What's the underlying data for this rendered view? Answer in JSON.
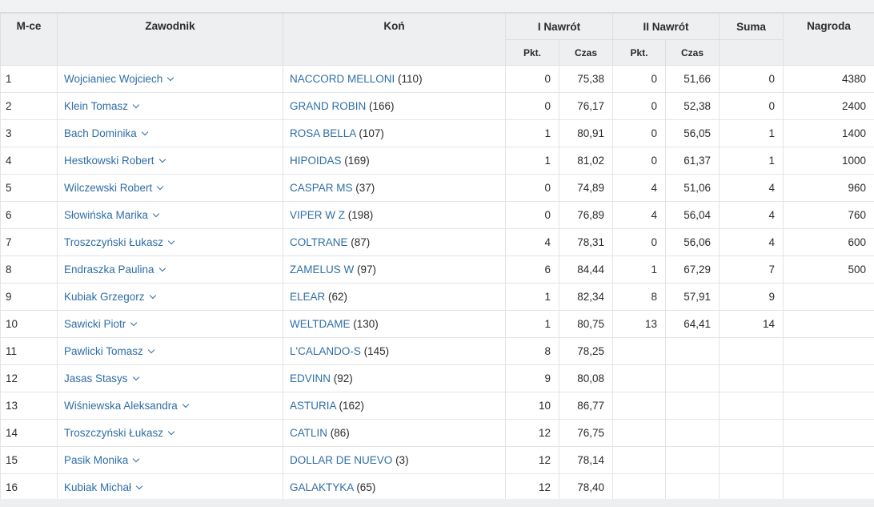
{
  "headers": {
    "place": "M-ce",
    "rider": "Zawodnik",
    "horse": "Koń",
    "round1": "I Nawrót",
    "round2": "II Nawrót",
    "total": "Suma",
    "prize": "Nagroda",
    "pts": "Pkt.",
    "time": "Czas"
  },
  "rows": [
    {
      "place": "1",
      "rider": "Wojcianiec Wojciech",
      "horse": "NACCORD MELLONI",
      "horse_no": "(110)",
      "r1_pts": "0",
      "r1_time": "75,38",
      "r2_pts": "0",
      "r2_time": "51,66",
      "total": "0",
      "prize": "4380"
    },
    {
      "place": "2",
      "rider": "Klein Tomasz",
      "horse": "GRAND ROBIN",
      "horse_no": "(166)",
      "r1_pts": "0",
      "r1_time": "76,17",
      "r2_pts": "0",
      "r2_time": "52,38",
      "total": "0",
      "prize": "2400"
    },
    {
      "place": "3",
      "rider": "Bach Dominika",
      "horse": "ROSA BELLA",
      "horse_no": "(107)",
      "r1_pts": "1",
      "r1_time": "80,91",
      "r2_pts": "0",
      "r2_time": "56,05",
      "total": "1",
      "prize": "1400"
    },
    {
      "place": "4",
      "rider": "Hestkowski Robert",
      "horse": "HIPOIDAS",
      "horse_no": "(169)",
      "r1_pts": "1",
      "r1_time": "81,02",
      "r2_pts": "0",
      "r2_time": "61,37",
      "total": "1",
      "prize": "1000"
    },
    {
      "place": "5",
      "rider": "Wilczewski Robert",
      "horse": "CASPAR MS",
      "horse_no": "(37)",
      "r1_pts": "0",
      "r1_time": "74,89",
      "r2_pts": "4",
      "r2_time": "51,06",
      "total": "4",
      "prize": "960"
    },
    {
      "place": "6",
      "rider": "Słowińska Marika",
      "horse": "VIPER W Z",
      "horse_no": "(198)",
      "r1_pts": "0",
      "r1_time": "76,89",
      "r2_pts": "4",
      "r2_time": "56,04",
      "total": "4",
      "prize": "760"
    },
    {
      "place": "7",
      "rider": "Troszczyński Łukasz",
      "horse": "COLTRANE",
      "horse_no": "(87)",
      "r1_pts": "4",
      "r1_time": "78,31",
      "r2_pts": "0",
      "r2_time": "56,06",
      "total": "4",
      "prize": "600"
    },
    {
      "place": "8",
      "rider": "Endraszka Paulina",
      "horse": "ZAMELUS W",
      "horse_no": "(97)",
      "r1_pts": "6",
      "r1_time": "84,44",
      "r2_pts": "1",
      "r2_time": "67,29",
      "total": "7",
      "prize": "500"
    },
    {
      "place": "9",
      "rider": "Kubiak Grzegorz",
      "horse": "ELEAR",
      "horse_no": "(62)",
      "r1_pts": "1",
      "r1_time": "82,34",
      "r2_pts": "8",
      "r2_time": "57,91",
      "total": "9",
      "prize": ""
    },
    {
      "place": "10",
      "rider": "Sawicki Piotr",
      "horse": "WELTDAME",
      "horse_no": "(130)",
      "r1_pts": "1",
      "r1_time": "80,75",
      "r2_pts": "13",
      "r2_time": "64,41",
      "total": "14",
      "prize": ""
    },
    {
      "place": "11",
      "rider": "Pawlicki Tomasz",
      "horse": "L'CALANDO-S",
      "horse_no": "(145)",
      "r1_pts": "8",
      "r1_time": "78,25",
      "r2_pts": "",
      "r2_time": "",
      "total": "",
      "prize": ""
    },
    {
      "place": "12",
      "rider": "Jasas Stasys",
      "horse": "EDVINN",
      "horse_no": "(92)",
      "r1_pts": "9",
      "r1_time": "80,08",
      "r2_pts": "",
      "r2_time": "",
      "total": "",
      "prize": ""
    },
    {
      "place": "13",
      "rider": "Wiśniewska Aleksandra",
      "horse": "ASTURIA",
      "horse_no": "(162)",
      "r1_pts": "10",
      "r1_time": "86,77",
      "r2_pts": "",
      "r2_time": "",
      "total": "",
      "prize": ""
    },
    {
      "place": "14",
      "rider": "Troszczyński Łukasz",
      "horse": "CATLIN",
      "horse_no": "(86)",
      "r1_pts": "12",
      "r1_time": "76,75",
      "r2_pts": "",
      "r2_time": "",
      "total": "",
      "prize": ""
    },
    {
      "place": "15",
      "rider": "Pasik Monika",
      "horse": "DOLLAR DE NUEVO",
      "horse_no": "(3)",
      "r1_pts": "12",
      "r1_time": "78,14",
      "r2_pts": "",
      "r2_time": "",
      "total": "",
      "prize": ""
    },
    {
      "place": "16",
      "rider": "Kubiak Michał",
      "horse": "GALAKTYKA",
      "horse_no": "(65)",
      "r1_pts": "12",
      "r1_time": "78,40",
      "r2_pts": "",
      "r2_time": "",
      "total": "",
      "prize": ""
    }
  ],
  "colors": {
    "link": "#2f6ea5",
    "header_bg": "#eeeff0",
    "page_bg": "#f0f2f3"
  }
}
